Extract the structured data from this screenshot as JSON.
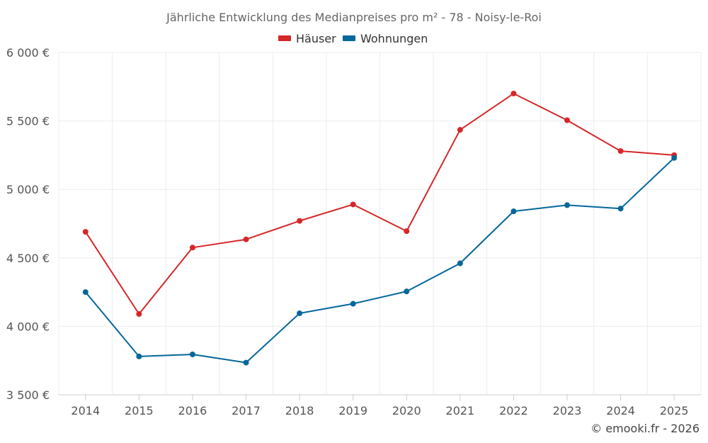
{
  "chart_data": {
    "type": "line",
    "title": "Jährliche Entwicklung des Medianpreises pro m² - 78 - Noisy-le-Roi",
    "categories": [
      "2014",
      "2015",
      "2016",
      "2017",
      "2018",
      "2019",
      "2020",
      "2021",
      "2022",
      "2023",
      "2024",
      "2025"
    ],
    "series": [
      {
        "name": "Häuser",
        "color": "#d62728",
        "values": [
          4690,
          4090,
          4575,
          4635,
          4770,
          4890,
          4695,
          5435,
          5700,
          5505,
          5280,
          5250
        ]
      },
      {
        "name": "Wohnungen",
        "color": "#04679b",
        "values": [
          4250,
          3780,
          3795,
          3735,
          4095,
          4165,
          4255,
          4460,
          4840,
          4885,
          4860,
          5230
        ]
      }
    ],
    "ylim": [
      3500,
      6000
    ],
    "yticks": [
      3500,
      4000,
      4500,
      5000,
      5500,
      6000
    ],
    "ytick_labels": [
      "3 500 €",
      "4 000 €",
      "4 500 €",
      "5 000 €",
      "5 500 €",
      "6 000 €"
    ],
    "xlabel": "",
    "ylabel": "",
    "grid": true,
    "legend_position": "top-center"
  },
  "credit": "© emooki.fr - 2026"
}
